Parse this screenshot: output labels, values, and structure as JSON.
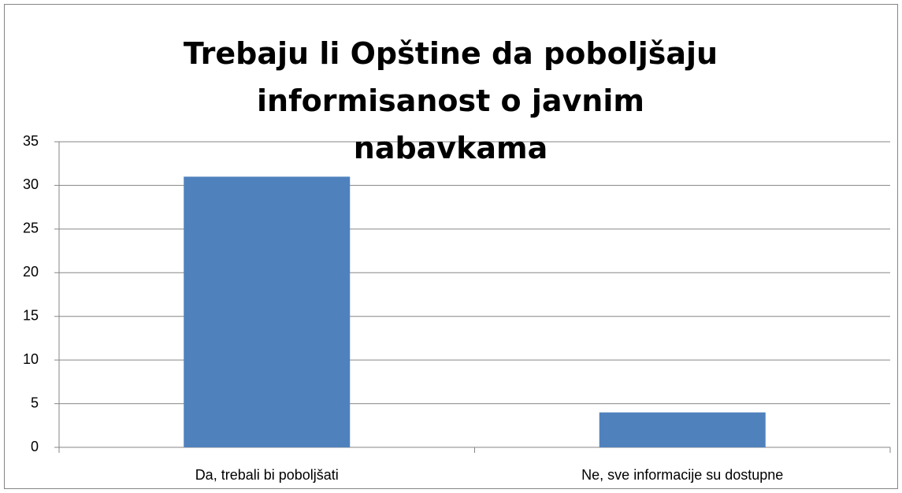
{
  "chart_data": {
    "type": "bar",
    "title": "Trebaju li Opštine da poboljšaju informisanost o javnim nabavkama",
    "categories": [
      "Da, trebali bi poboljšati",
      "Ne, sve informacije su dostupne"
    ],
    "values": [
      31,
      4
    ],
    "color": "#4f81bd",
    "ylim": [
      0,
      35
    ],
    "yticks": [
      0,
      5,
      10,
      15,
      20,
      25,
      30,
      35
    ],
    "grid": true
  }
}
